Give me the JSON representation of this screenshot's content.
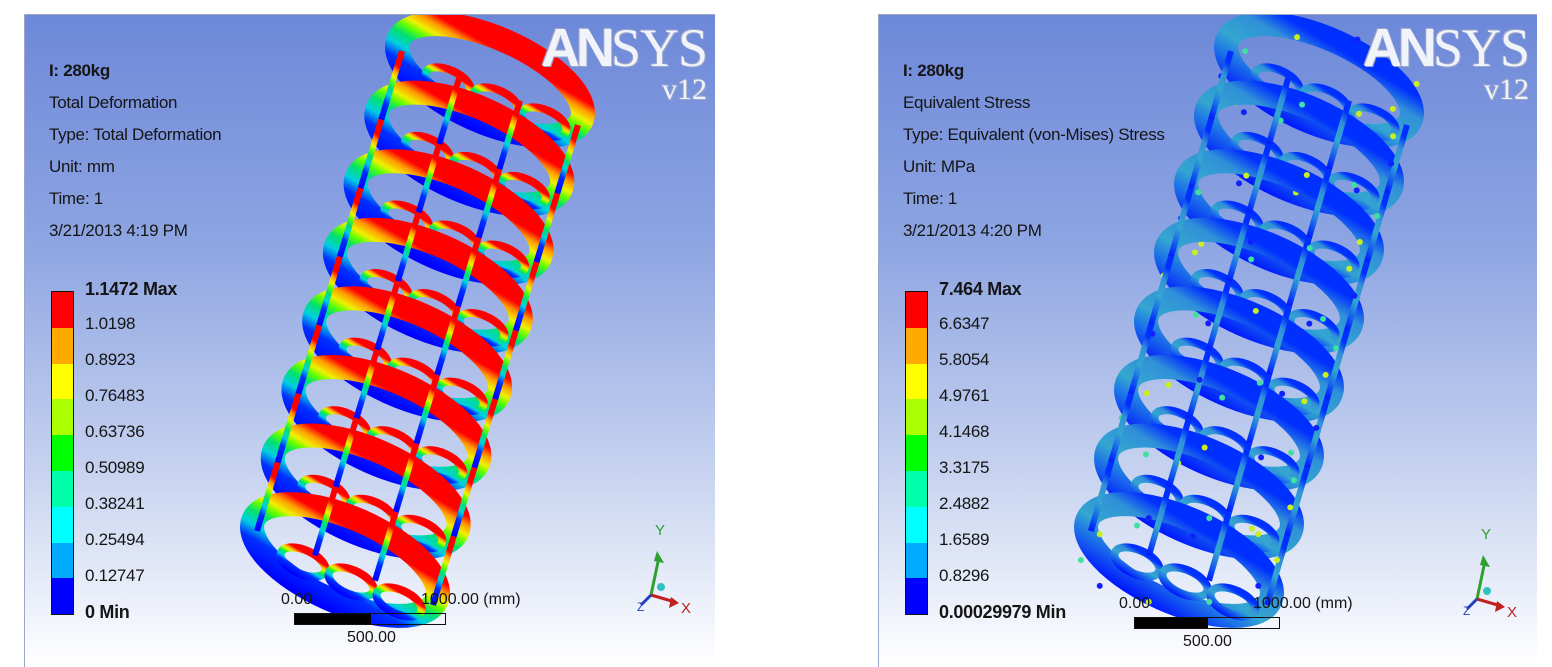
{
  "panels": [
    {
      "info": {
        "title": "I: 280kg",
        "result": "Total Deformation",
        "type": "Type: Total Deformation",
        "unit": "Unit: mm",
        "time": "Time: 1",
        "date": "3/21/2013 4:19 PM"
      },
      "legend": {
        "max": "1.1472 Max",
        "levels": [
          "1.0198",
          "0.8923",
          "0.76483",
          "0.63736",
          "0.50989",
          "0.38241",
          "0.25494",
          "0.12747"
        ],
        "min": "0 Min"
      },
      "scale": {
        "start": "0.00",
        "end": "1000.00 (mm)",
        "mid": "500.00"
      },
      "logo": {
        "brand_left": "AN",
        "brand_right": "SYS",
        "version": "v12"
      },
      "triad": {
        "y": "Y",
        "x": "X",
        "z": "Z"
      }
    },
    {
      "info": {
        "title": "I: 280kg",
        "result": "Equivalent Stress",
        "type": "Type: Equivalent (von-Mises) Stress",
        "unit": "Unit: MPa",
        "time": "Time: 1",
        "date": "3/21/2013 4:20 PM"
      },
      "legend": {
        "max": "7.464 Max",
        "levels": [
          "6.6347",
          "5.8054",
          "4.9761",
          "4.1468",
          "3.3175",
          "2.4882",
          "1.6589",
          "0.8296"
        ],
        "min": "0.00029979 Min"
      },
      "scale": {
        "start": "0.00",
        "end": "1000.00 (mm)",
        "mid": "500.00"
      },
      "logo": {
        "brand_left": "AN",
        "brand_right": "SYS",
        "version": "v12"
      },
      "triad": {
        "y": "Y",
        "x": "X",
        "z": "Z"
      }
    }
  ],
  "legend_colors": [
    "#ff0000",
    "#ffaa00",
    "#ffff00",
    "#aaff00",
    "#00ff00",
    "#00ffaa",
    "#00ffff",
    "#00aaff",
    "#0000ff"
  ]
}
